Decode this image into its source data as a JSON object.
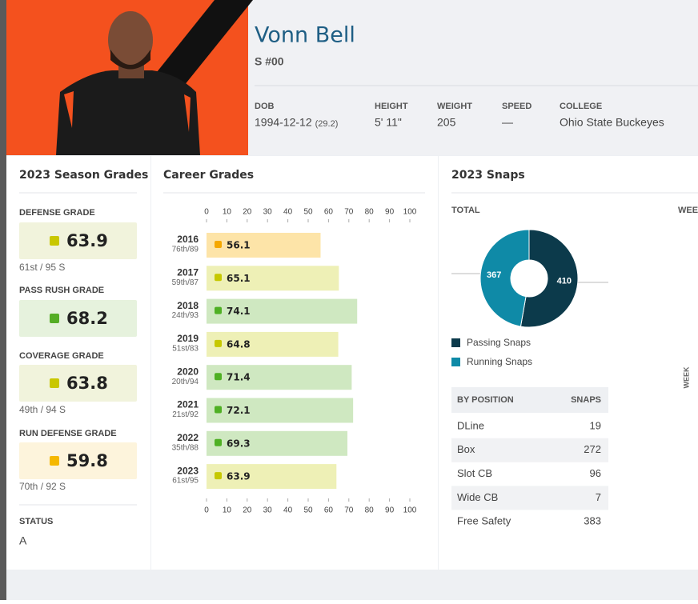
{
  "header": {
    "name": "Vonn Bell",
    "position": "S #00",
    "fields": [
      {
        "label": "DOB",
        "value": "1994-12-12",
        "note": "(29.2)"
      },
      {
        "label": "HEIGHT",
        "value": "5' 11\""
      },
      {
        "label": "WEIGHT",
        "value": "205"
      },
      {
        "label": "SPEED",
        "value": "—"
      },
      {
        "label": "COLLEGE",
        "value": "Ohio State Buckeyes"
      }
    ]
  },
  "season_grades": {
    "title": "2023 Season Grades",
    "grades": [
      {
        "label": "DEFENSE GRADE",
        "value": 63.9,
        "color": "#c9c700",
        "background": "#f1f3dc",
        "rank": "61st / 95 S"
      },
      {
        "label": "PASS RUSH GRADE",
        "value": 68.2,
        "color": "#55ad25",
        "background": "#e6f2dd"
      },
      {
        "label": "COVERAGE GRADE",
        "value": 63.8,
        "color": "#c9c700",
        "background": "#f1f3dc",
        "rank": "49th / 94 S"
      },
      {
        "label": "RUN DEFENSE GRADE",
        "value": 59.8,
        "color": "#f5b800",
        "background": "#fdf4dc",
        "rank": "70th / 92 S"
      }
    ],
    "status_label": "STATUS",
    "status": "A"
  },
  "career_grades": {
    "title": "Career Grades",
    "type": "bar",
    "categories": [
      "2016",
      "2017",
      "2018",
      "2019",
      "2020",
      "2021",
      "2022",
      "2023"
    ],
    "ranks": [
      "76th/89",
      "59th/87",
      "24th/93",
      "51st/83",
      "20th/94",
      "21st/92",
      "35th/88",
      "61st/95"
    ],
    "values": [
      56.1,
      65.1,
      74.1,
      64.8,
      71.4,
      72.1,
      69.3,
      63.9
    ],
    "colors": [
      "#fde4a8",
      "#eef0b6",
      "#cfe8c1",
      "#eef0b6",
      "#cfe8c1",
      "#cfe8c1",
      "#cfe8c1",
      "#eef0b6"
    ],
    "dot_colors": [
      "#f5a800",
      "#c6c800",
      "#4fb024",
      "#c6c800",
      "#4fb024",
      "#4fb024",
      "#4fb024",
      "#c6c800"
    ],
    "xlim": [
      0,
      100
    ],
    "xticks": [
      0,
      10,
      20,
      30,
      40,
      50,
      60,
      70,
      80,
      90,
      100
    ]
  },
  "snaps": {
    "title": "2023 Snaps",
    "total_label": "TOTAL",
    "weekly_label": "WEE",
    "week_axis_label": "WEEK",
    "type": "pie",
    "series": [
      {
        "name": "Passing Snaps",
        "value": 410,
        "color": "#0c3a4b"
      },
      {
        "name": "Running Snaps",
        "value": 367,
        "color": "#0f8aa7"
      }
    ],
    "table": {
      "columns": [
        "BY POSITION",
        "SNAPS"
      ],
      "rows": [
        [
          "DLine",
          19
        ],
        [
          "Box",
          272
        ],
        [
          "Slot CB",
          96
        ],
        [
          "Wide CB",
          7
        ],
        [
          "Free Safety",
          383
        ]
      ]
    }
  }
}
